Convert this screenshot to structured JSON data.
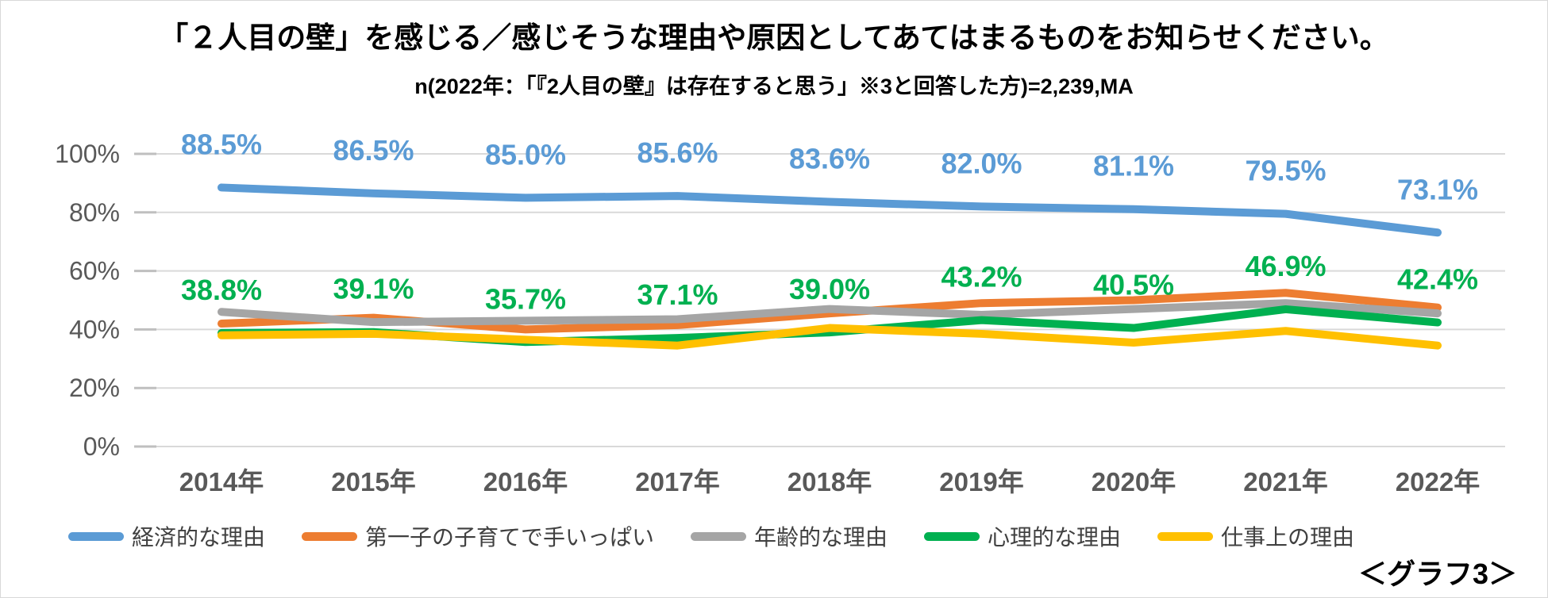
{
  "page": {
    "figure_label": "＜グラフ3＞"
  },
  "chart_data": {
    "type": "line",
    "title": "「２人目の壁」を感じる／感じそうな理由や原因としてあてはまるものをお知らせください。",
    "subtitle": "n(2022年：「『2人目の壁』は存在すると思う」※3と回答した方)=2,239,MA",
    "categories": [
      "2014年",
      "2015年",
      "2016年",
      "2017年",
      "2018年",
      "2019年",
      "2020年",
      "2021年",
      "2022年"
    ],
    "y_tick_labels": [
      "0%",
      "20%",
      "40%",
      "60%",
      "80%",
      "100%"
    ],
    "ylim": [
      0,
      100
    ],
    "grid": true,
    "legend_position": "bottom",
    "gridline_color": "#d9d9d9",
    "axis_text_color": "#595959",
    "series": [
      {
        "key": "economic",
        "name": "経済的な理由",
        "color": "#5B9BD5",
        "show_labels": true,
        "values": [
          88.5,
          86.5,
          85.0,
          85.6,
          83.6,
          82.0,
          81.1,
          79.5,
          73.1
        ]
      },
      {
        "key": "busy-with-first-child",
        "name": "第一子の子育てで手いっぱい",
        "color": "#ED7D31",
        "show_labels": false,
        "values": [
          42,
          44,
          40,
          41.5,
          45.5,
          49,
          50,
          52.5,
          47.5
        ]
      },
      {
        "key": "age",
        "name": "年齢的な理由",
        "color": "#A5A5A5",
        "show_labels": false,
        "values": [
          46,
          42.5,
          43,
          43.5,
          47,
          45,
          47,
          49,
          45.5
        ]
      },
      {
        "key": "psychological",
        "name": "心理的な理由",
        "color": "#00B050",
        "show_labels": true,
        "values": [
          38.8,
          39.1,
          35.7,
          37.1,
          39.0,
          43.2,
          40.5,
          46.9,
          42.4
        ]
      },
      {
        "key": "work",
        "name": "仕事上の理由",
        "color": "#FFC000",
        "show_labels": false,
        "values": [
          38,
          38.5,
          36.5,
          34.5,
          40.5,
          38.5,
          35.5,
          39.5,
          34.5
        ]
      }
    ]
  }
}
